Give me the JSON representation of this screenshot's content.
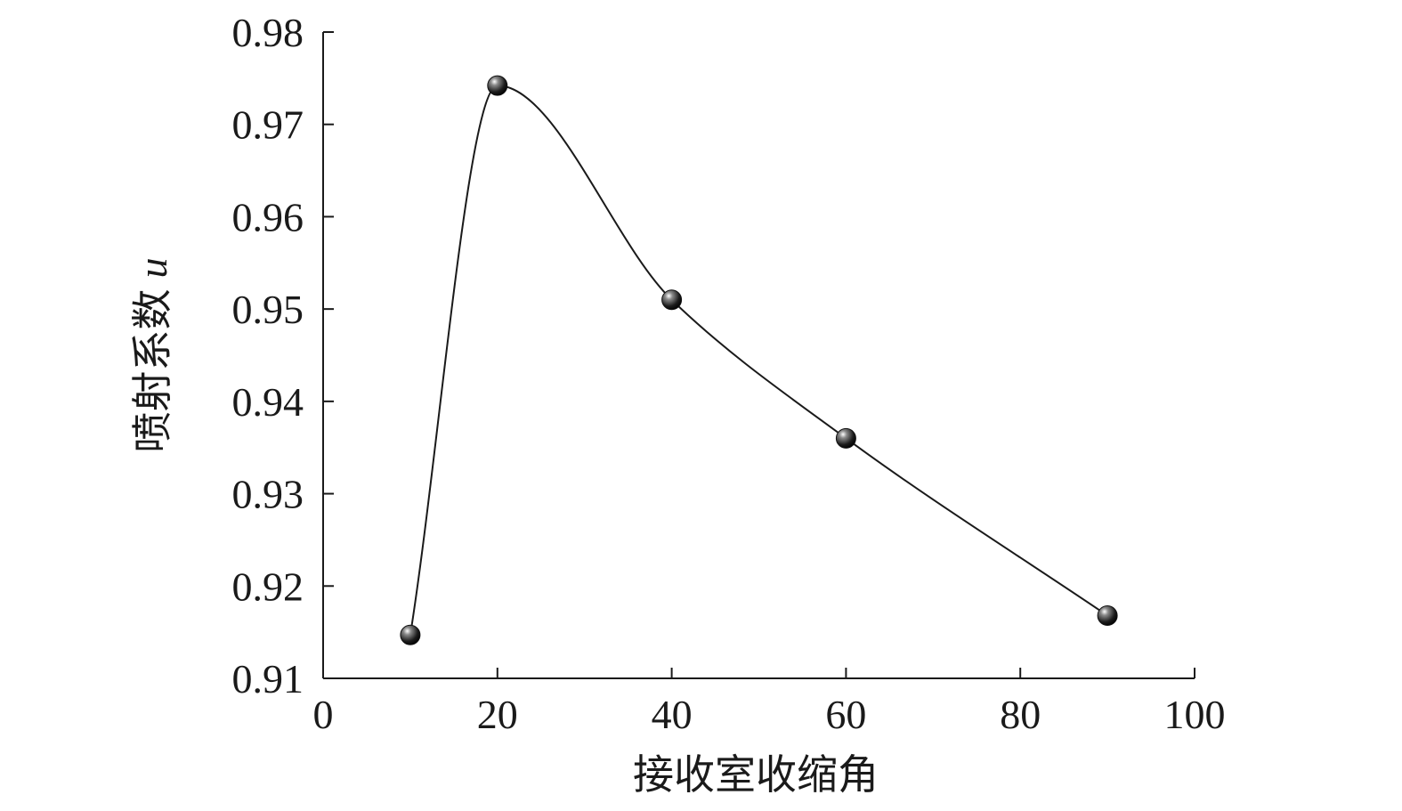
{
  "chart_data": {
    "type": "line",
    "title": "",
    "xlabel": "接收室收缩角",
    "ylabel": "喷射系数",
    "ylabel_symbol": "u",
    "xlim": [
      0,
      100
    ],
    "ylim": [
      0.91,
      0.98
    ],
    "xticks": [
      "0",
      "20",
      "40",
      "60",
      "80",
      "100"
    ],
    "yticks": [
      "0.91",
      "0.92",
      "0.93",
      "0.94",
      "0.95",
      "0.96",
      "0.97",
      "0.98"
    ],
    "grid": false,
    "legend": "none",
    "smooth": true,
    "series": [
      {
        "x": [
          10,
          20,
          40,
          60,
          90
        ],
        "y": [
          0.9147,
          0.9742,
          0.951,
          0.936,
          0.9168
        ]
      }
    ],
    "colors": {
      "line": "#1a1a1a",
      "marker": "#111111",
      "axis": "#1a1a1a"
    }
  }
}
